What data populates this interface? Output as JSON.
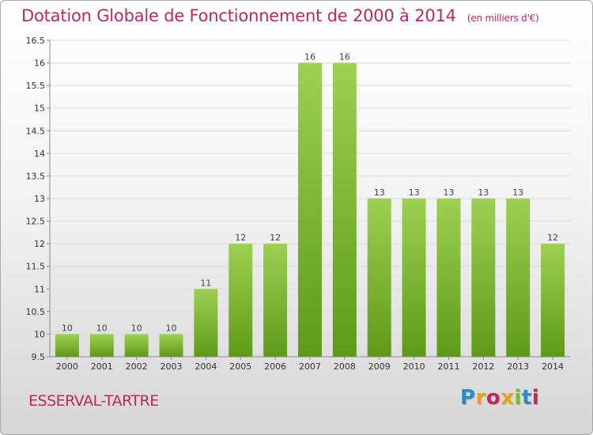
{
  "title": "Dotation Globale de Fonctionnement de 2000 à 2014",
  "unit_note": "(en milliers d'€)",
  "commune": "ESSERVAL-TARTRE",
  "logo": {
    "text": "Proxiti",
    "colors": [
      "#2f89c8",
      "#e8a21a",
      "#c0275a",
      "#e8a21a",
      "#7bb928",
      "#2f89c8",
      "#c0275a"
    ]
  },
  "colors": {
    "accent": "#c0275a",
    "bar_top": "#9ed052",
    "bar_bottom": "#5e9a18"
  },
  "chart_data": {
    "type": "bar",
    "categories": [
      "2000",
      "2001",
      "2002",
      "2003",
      "2004",
      "2005",
      "2006",
      "2007",
      "2008",
      "2009",
      "2010",
      "2011",
      "2012",
      "2013",
      "2014"
    ],
    "values": [
      10,
      10,
      10,
      10,
      11,
      12,
      12,
      16,
      16,
      13,
      13,
      13,
      13,
      13,
      12
    ],
    "data_labels": [
      "10",
      "10",
      "10",
      "10",
      "11",
      "12",
      "12",
      "16",
      "16",
      "13",
      "13",
      "13",
      "13",
      "13",
      "12"
    ],
    "ylim": [
      9.5,
      16.5
    ],
    "yticks": [
      9.5,
      10,
      10.5,
      11,
      11.5,
      12,
      12.5,
      13,
      13.5,
      14,
      14.5,
      15,
      15.5,
      16,
      16.5
    ],
    "ytick_labels": [
      "9.5",
      "10",
      "10.5",
      "11",
      "11.5",
      "12",
      "12.5",
      "13",
      "13.5",
      "14",
      "14.5",
      "15",
      "15.5",
      "16",
      "16.5"
    ],
    "grid": true,
    "xlabel": "",
    "ylabel": ""
  }
}
